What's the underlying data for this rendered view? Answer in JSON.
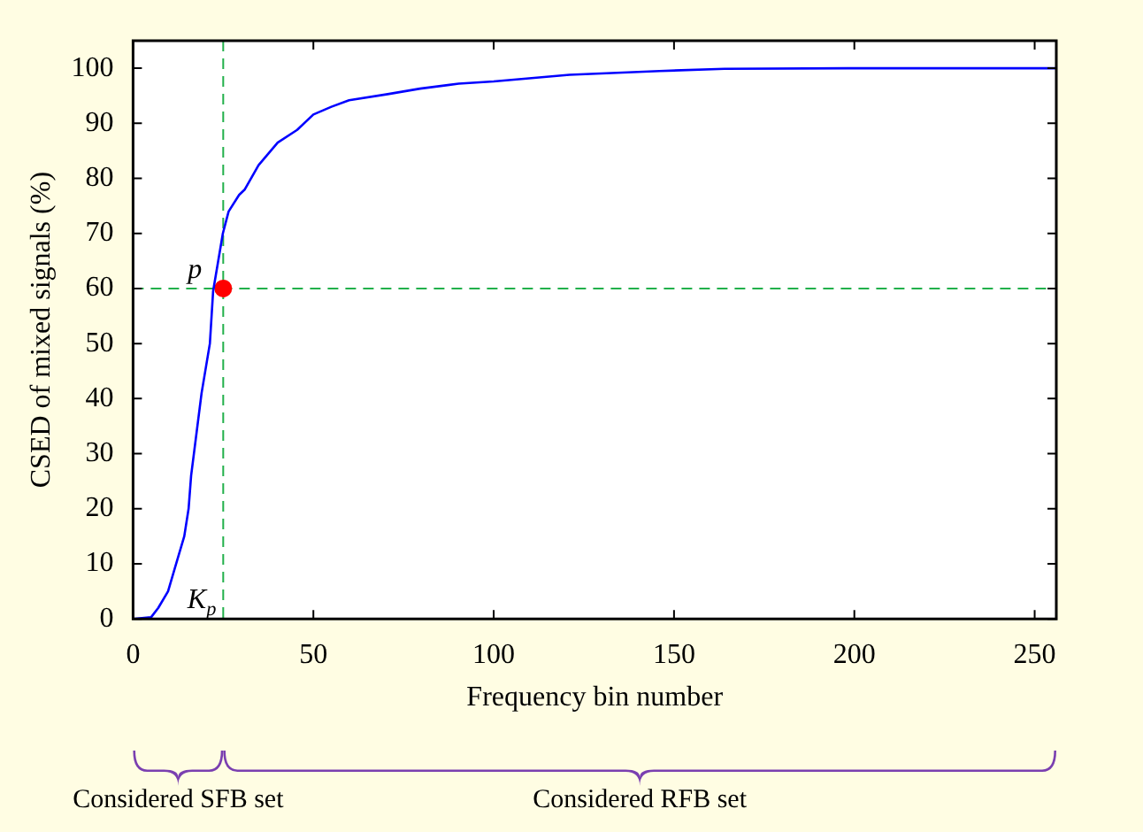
{
  "chart_data": {
    "type": "line",
    "xlabel": "Frequency bin number",
    "ylabel": "CSED of mixed signals (%)",
    "xlim": [
      0,
      256
    ],
    "xticks": [
      0,
      50,
      100,
      150,
      200,
      250
    ],
    "ylim": [
      0,
      105
    ],
    "yticks": [
      0,
      10,
      20,
      30,
      40,
      50,
      60,
      70,
      80,
      90,
      100
    ],
    "series": [
      {
        "color": "#0000ff",
        "marker": "none",
        "x": [
          0,
          5,
          7,
          9.7,
          11.5,
          14.2,
          15.4,
          16.1,
          19,
          21.3,
          22.2,
          24.9,
          26.5,
          29.4,
          31,
          34.8,
          40.1,
          45.5,
          50,
          55,
          59.9,
          70.6,
          79.6,
          90.3,
          100,
          121,
          146,
          164,
          198,
          256
        ],
        "values": [
          0,
          0.3,
          2,
          5,
          9,
          15,
          20,
          26,
          41,
          50,
          59.5,
          70,
          74,
          77,
          78,
          82.4,
          86.5,
          88.8,
          91.6,
          93,
          94.2,
          95.3,
          96.3,
          97.2,
          97.6,
          98.8,
          99.5,
          99.9,
          100,
          100
        ]
      },
      {
        "type": "scatter",
        "marker": "circle",
        "color": "#ff0000",
        "x": [
          25
        ],
        "values": [
          60
        ]
      }
    ],
    "ref_lines": [
      {
        "axis": "x",
        "value": 25,
        "color": "#22b04b",
        "line_style": "dashed"
      },
      {
        "axis": "y",
        "value": 60,
        "color": "#22b04b",
        "line_style": "dashed"
      }
    ],
    "annotations": [
      {
        "text": "p",
        "x": 25,
        "y": 60
      },
      {
        "text": "K$_{p}$",
        "x": 25,
        "y": 0
      },
      "Considered SFB set",
      "Considered RFB set"
    ],
    "legend": false
  }
}
